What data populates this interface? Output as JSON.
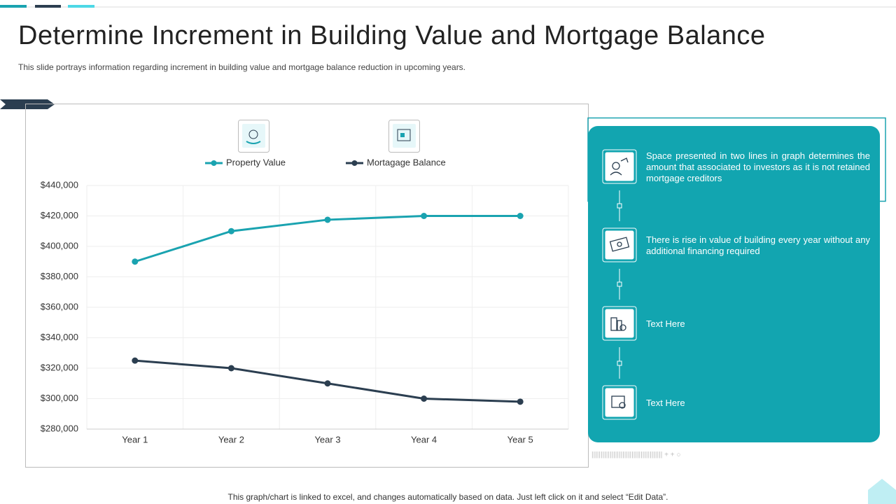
{
  "header": {
    "title": "Determine Increment in Building Value and Mortgage Balance",
    "subtitle": "This slide portrays information regarding increment in building value and mortgage balance reduction in upcoming years."
  },
  "chart_data": {
    "type": "line",
    "categories": [
      "Year 1",
      "Year 2",
      "Year 3",
      "Year 4",
      "Year 5"
    ],
    "series": [
      {
        "name": "Property Value",
        "color": "#1aa3b0",
        "values": [
          390000,
          410000,
          417500,
          420000,
          420000
        ]
      },
      {
        "name": "Mortagage Balance",
        "color": "#2b3e50",
        "values": [
          325000,
          320000,
          310000,
          300000,
          298000
        ]
      }
    ],
    "ylim": [
      280000,
      440000
    ],
    "yticks": [
      {
        "value": 280000,
        "label": "$280,000"
      },
      {
        "value": 300000,
        "label": "$300,000"
      },
      {
        "value": 320000,
        "label": "$320,000"
      },
      {
        "value": 340000,
        "label": "$340,000"
      },
      {
        "value": 360000,
        "label": "$360,000"
      },
      {
        "value": 380000,
        "label": "$380,000"
      },
      {
        "value": 400000,
        "label": "$400,000"
      },
      {
        "value": 420000,
        "label": "$420,000"
      },
      {
        "value": 440000,
        "label": "$440,000"
      }
    ],
    "grid": true
  },
  "panel": {
    "items": [
      "Space presented in two lines in graph determines the amount that associated to investors as it is not retained mortgage creditors",
      "There is rise in value of building every year without any additional financing required",
      "Text Here",
      "Text Here"
    ]
  },
  "footer": "This graph/chart is linked to excel, and changes automatically based on data. Just left click on it and select “Edit Data”."
}
